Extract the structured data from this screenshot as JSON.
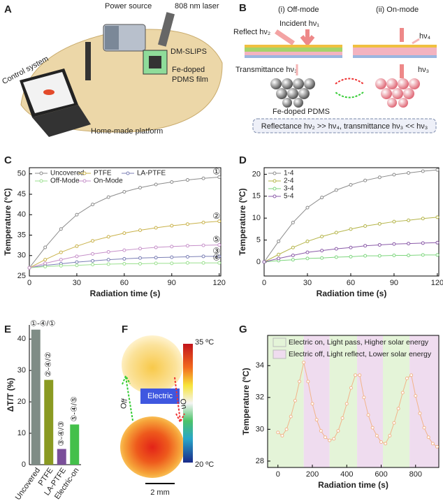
{
  "panel_a": {
    "label": "A",
    "power_source": "Power source",
    "laser": "808 nm laser",
    "control_system": "Control system",
    "dm_slips": "DM-SLIPS",
    "film": [
      "Fe-doped",
      "PDMS film"
    ],
    "platform": "Home-made platform"
  },
  "panel_b": {
    "label": "B",
    "off_mode": "(i) Off-mode",
    "on_mode": "(ii) On-mode",
    "incident": "Incident hν₁",
    "reflect": "Reflect hν₂",
    "on_reflect": "hν₄",
    "transmittance": "Transmittance hν₃",
    "on_transmit": "hν₃",
    "material": "Fe-doped PDMS",
    "summary": "Reflectance hν₂ >> hν₄, transmittance hν₃ << hν₃"
  },
  "panel_f": {
    "label": "F",
    "max_temp": "35 ºC",
    "min_temp": "20 ºC",
    "off": "Off",
    "on": "On",
    "electric": "Electric",
    "scale": "2 mm"
  },
  "chart_data": [
    {
      "type": "line",
      "panel_label": "C",
      "xlabel": "Radiation time (s)",
      "ylabel": "Temperature (°C)",
      "x": [
        0,
        10,
        20,
        30,
        40,
        50,
        60,
        70,
        80,
        90,
        100,
        110,
        120
      ],
      "xlim": [
        0,
        121
      ],
      "xticks": [
        0,
        30,
        60,
        90,
        120
      ],
      "ylim": [
        25,
        51.5
      ],
      "yticks": [
        25,
        30,
        35,
        40,
        45,
        50
      ],
      "series": [
        {
          "name": "Uncovered",
          "color": "#8c8c8c",
          "annotation": "①",
          "values": [
            27.0,
            32.0,
            36.5,
            40.0,
            42.5,
            44.3,
            45.6,
            46.6,
            47.4,
            48.0,
            48.5,
            48.9,
            49.2
          ]
        },
        {
          "name": "PTFE",
          "color": "#c9b24a",
          "annotation": "②",
          "values": [
            27.0,
            29.0,
            30.8,
            32.3,
            33.6,
            34.6,
            35.5,
            36.2,
            36.8,
            37.3,
            37.7,
            38.1,
            38.4
          ]
        },
        {
          "name": "LA-PTFE",
          "color": "#7b7fb5",
          "annotation": "③",
          "values": [
            27.0,
            27.6,
            28.0,
            28.4,
            28.7,
            29.0,
            29.2,
            29.4,
            29.5,
            29.6,
            29.7,
            29.8,
            29.8
          ]
        },
        {
          "name": "Off-Mode",
          "color": "#9be08f",
          "annotation": "④",
          "values": [
            27.0,
            27.3,
            27.5,
            27.6,
            27.8,
            27.9,
            28.0,
            28.0,
            28.1,
            28.1,
            28.2,
            28.2,
            28.2
          ]
        },
        {
          "name": "On-Mode",
          "color": "#c690c9",
          "annotation": "⑤",
          "values": [
            27.0,
            28.1,
            29.0,
            29.8,
            30.4,
            30.9,
            31.3,
            31.7,
            32.0,
            32.2,
            32.4,
            32.5,
            32.6
          ]
        }
      ]
    },
    {
      "type": "line",
      "panel_label": "D",
      "xlabel": "Radiation time (s)",
      "ylabel": "Temperature (ºC)",
      "x": [
        0,
        10,
        20,
        30,
        40,
        50,
        60,
        70,
        80,
        90,
        100,
        110,
        120
      ],
      "xlim": [
        0,
        121
      ],
      "xticks": [
        0,
        30,
        60,
        90,
        120
      ],
      "ylim": [
        -3.2,
        21.5
      ],
      "yticks": [
        0,
        5,
        10,
        15,
        20
      ],
      "series": [
        {
          "name": "1-4",
          "color": "#8c8c8c",
          "values": [
            0,
            4.7,
            9.0,
            12.4,
            14.7,
            16.4,
            17.6,
            18.6,
            19.3,
            19.9,
            20.3,
            20.7,
            21.0
          ]
        },
        {
          "name": "2-4",
          "color": "#b5b54a",
          "values": [
            0,
            1.7,
            3.3,
            4.7,
            5.8,
            6.7,
            7.5,
            8.2,
            8.7,
            9.2,
            9.5,
            9.9,
            10.2
          ]
        },
        {
          "name": "3-4",
          "color": "#7ed67e",
          "values": [
            0,
            0.3,
            0.5,
            0.8,
            0.9,
            1.1,
            1.2,
            1.4,
            1.4,
            1.5,
            1.5,
            1.6,
            1.6
          ]
        },
        {
          "name": "5-4",
          "color": "#8a5aa8",
          "values": [
            0,
            0.8,
            1.5,
            2.2,
            2.6,
            3.0,
            3.3,
            3.7,
            3.9,
            4.1,
            4.2,
            4.3,
            4.4
          ]
        }
      ]
    },
    {
      "type": "bar",
      "panel_label": "E",
      "ylabel": "ΔT/T (%)",
      "categories": [
        "Uncovered",
        "PTFE",
        "LA-PTFE",
        "Electric-on"
      ],
      "values": [
        43,
        27,
        5,
        12.8
      ],
      "colors": [
        "#7f8c86",
        "#8a9a22",
        "#7a4f9a",
        "#44c04a"
      ],
      "annotations": [
        "①-④/①",
        "②-④/②",
        "③-④/③",
        "⑤-④/⑤"
      ],
      "ylim": [
        0,
        44.5
      ],
      "yticks": [
        0,
        10,
        20,
        30,
        40
      ]
    },
    {
      "type": "line",
      "panel_label": "G",
      "xlabel": "Radiation time (s)",
      "ylabel": "Temperature (ºC)",
      "x": [
        0,
        25,
        50,
        75,
        100,
        125,
        150,
        175,
        200,
        225,
        250,
        275,
        300,
        325,
        350,
        375,
        400,
        425,
        450,
        475,
        500,
        525,
        550,
        575,
        600,
        625,
        650,
        675,
        700,
        725,
        750,
        775,
        800,
        825,
        850,
        875,
        900,
        925
      ],
      "xlim": [
        -60,
        935
      ],
      "xticks": [
        0,
        200,
        400,
        600,
        800
      ],
      "ylim": [
        27.6,
        35.9
      ],
      "yticks": [
        28,
        30,
        32,
        34
      ],
      "band_legend": [
        {
          "name": "Electric on, Light pass, Higher solar energy",
          "color": "#e4f4d8"
        },
        {
          "name": "Electric off, Light reflect, Lower solar energy",
          "color": "#efdcef"
        }
      ],
      "bands": [
        {
          "start": -60,
          "end": 150,
          "color": "#e4f4d8"
        },
        {
          "start": 150,
          "end": 300,
          "color": "#efdcef"
        },
        {
          "start": 300,
          "end": 460,
          "color": "#e4f4d8"
        },
        {
          "start": 460,
          "end": 610,
          "color": "#efdcef"
        },
        {
          "start": 610,
          "end": 765,
          "color": "#e4f4d8"
        },
        {
          "start": 765,
          "end": 935,
          "color": "#efdcef"
        }
      ],
      "series": [
        {
          "color": "#f2b48a",
          "values": [
            29.8,
            29.6,
            30.0,
            30.8,
            31.8,
            33.0,
            34.2,
            33.0,
            31.6,
            30.6,
            29.9,
            29.5,
            29.3,
            29.4,
            29.9,
            30.7,
            31.6,
            32.6,
            33.4,
            33.4,
            32.0,
            30.9,
            30.1,
            29.6,
            29.2,
            29.1,
            29.6,
            30.4,
            31.3,
            32.3,
            33.2,
            33.4,
            32.1,
            31.0,
            30.1,
            29.5,
            29.1,
            28.9
          ]
        }
      ]
    }
  ]
}
